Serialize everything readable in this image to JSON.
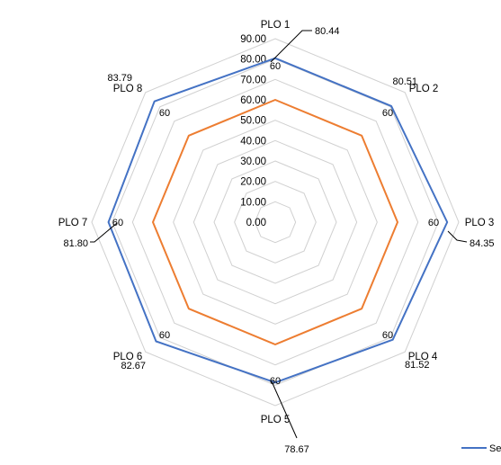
{
  "chart_data": {
    "type": "radar",
    "categories": [
      "PLO 1",
      "PLO 2",
      "PLO 3",
      "PLO 4",
      "PLO 5",
      "PLO 6",
      "PLO 7",
      "PLO 8"
    ],
    "rlim": [
      0,
      90
    ],
    "ticks": [
      "0.00",
      "10.00",
      "20.00",
      "30.00",
      "40.00",
      "50.00",
      "60.00",
      "70.00",
      "80.00",
      "90.00"
    ],
    "grid": true,
    "legend_position": "bottom-right",
    "series": [
      {
        "name": "Ser",
        "color": "#4472C4",
        "values": [
          80.44,
          80.51,
          84.35,
          81.52,
          78.67,
          82.67,
          81.8,
          83.79
        ],
        "labels": [
          "80.44",
          "80.51",
          "84.35",
          "81.52",
          "78.67",
          "82.67",
          "81.80",
          "83.79"
        ]
      },
      {
        "color": "#ED7D31",
        "values": [
          60,
          60,
          60,
          60,
          60,
          60,
          60,
          60
        ],
        "labels": [
          "60",
          "60",
          "60",
          "60",
          "60",
          "60",
          "60",
          "60"
        ]
      }
    ]
  }
}
